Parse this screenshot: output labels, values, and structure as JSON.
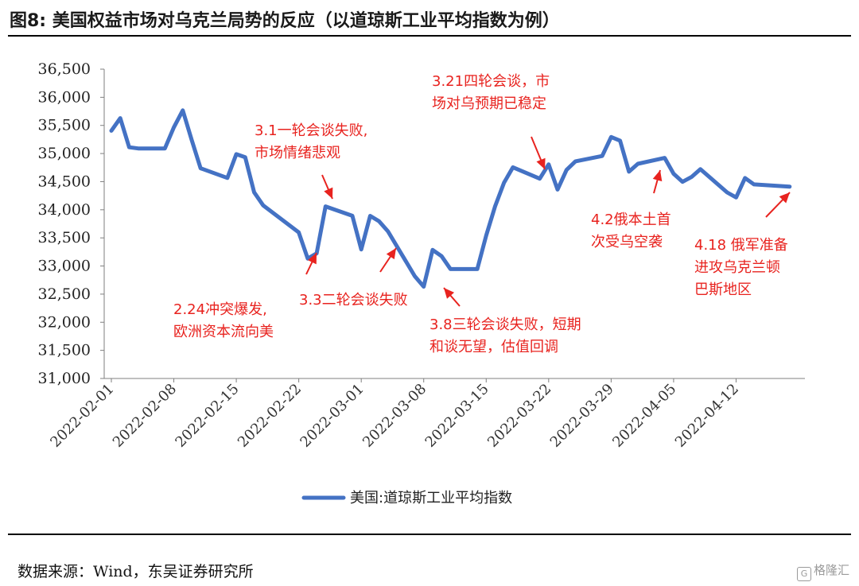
{
  "figure": {
    "title": "图8:  美国权益市场对乌克兰局势的反应（以道琼斯工业平均指数为例）",
    "source": "数据来源：Wind，东吴证券研究所",
    "watermark": "格隆汇"
  },
  "chart_data": {
    "type": "line",
    "title": "",
    "xlabel": "",
    "ylabel": "",
    "ylim": [
      31000,
      36500
    ],
    "yticks": [
      31000,
      31500,
      32000,
      32500,
      33000,
      33500,
      34000,
      34500,
      35000,
      35500,
      36000,
      36500
    ],
    "ytick_labels": [
      "31,000",
      "31,500",
      "32,000",
      "32,500",
      "33,000",
      "33,500",
      "34,000",
      "34,500",
      "35,000",
      "35,500",
      "36,000",
      "36,500"
    ],
    "xlim": [
      "2022-02-01",
      "2022-04-19"
    ],
    "xtick_labels": [
      "2022-02-01",
      "2022-02-08",
      "2022-02-15",
      "2022-02-22",
      "2022-03-01",
      "2022-03-08",
      "2022-03-15",
      "2022-03-22",
      "2022-03-29",
      "2022-04-05",
      "2022-04-12"
    ],
    "grid": false,
    "legend_position": "bottom-center",
    "series": [
      {
        "name": "美国:道琼斯工业平均指数",
        "color": "#4472c4",
        "points": [
          [
            "2022-02-01",
            35405
          ],
          [
            "2022-02-02",
            35629
          ],
          [
            "2022-02-03",
            35112
          ],
          [
            "2022-02-04",
            35090
          ],
          [
            "2022-02-07",
            35091
          ],
          [
            "2022-02-08",
            35463
          ],
          [
            "2022-02-09",
            35768
          ],
          [
            "2022-02-10",
            35241
          ],
          [
            "2022-02-11",
            34738
          ],
          [
            "2022-02-14",
            34566
          ],
          [
            "2022-02-15",
            34989
          ],
          [
            "2022-02-16",
            34935
          ],
          [
            "2022-02-17",
            34312
          ],
          [
            "2022-02-18",
            34079
          ],
          [
            "2022-02-22",
            33597
          ],
          [
            "2022-02-23",
            33132
          ],
          [
            "2022-02-24",
            33224
          ],
          [
            "2022-02-25",
            34059
          ],
          [
            "2022-02-28",
            33893
          ],
          [
            "2022-03-01",
            33295
          ],
          [
            "2022-03-02",
            33891
          ],
          [
            "2022-03-03",
            33795
          ],
          [
            "2022-03-04",
            33615
          ],
          [
            "2022-03-07",
            32818
          ],
          [
            "2022-03-08",
            32633
          ],
          [
            "2022-03-09",
            33286
          ],
          [
            "2022-03-10",
            33174
          ],
          [
            "2022-03-11",
            32945
          ],
          [
            "2022-03-14",
            32945
          ],
          [
            "2022-03-15",
            33544
          ],
          [
            "2022-03-16",
            34063
          ],
          [
            "2022-03-17",
            34481
          ],
          [
            "2022-03-18",
            34755
          ],
          [
            "2022-03-21",
            34553
          ],
          [
            "2022-03-22",
            34808
          ],
          [
            "2022-03-23",
            34359
          ],
          [
            "2022-03-24",
            34708
          ],
          [
            "2022-03-25",
            34862
          ],
          [
            "2022-03-28",
            34956
          ],
          [
            "2022-03-29",
            35294
          ],
          [
            "2022-03-30",
            35229
          ],
          [
            "2022-03-31",
            34678
          ],
          [
            "2022-04-01",
            34818
          ],
          [
            "2022-04-04",
            34922
          ],
          [
            "2022-04-05",
            34641
          ],
          [
            "2022-04-06",
            34497
          ],
          [
            "2022-04-07",
            34583
          ],
          [
            "2022-04-08",
            34722
          ],
          [
            "2022-04-11",
            34308
          ],
          [
            "2022-04-12",
            34220
          ],
          [
            "2022-04-13",
            34565
          ],
          [
            "2022-04-14",
            34451
          ],
          [
            "2022-04-18",
            34412
          ]
        ]
      }
    ],
    "annotations": [
      {
        "lines": [
          "2.24冲突爆发,",
          "欧洲资本流向美"
        ],
        "date": "2022-02-24"
      },
      {
        "lines": [
          "3.1一轮会谈失败,",
          "市场情绪悲观"
        ],
        "date": "2022-02-28"
      },
      {
        "lines": [
          "3.3二轮会谈失败"
        ],
        "date": "2022-03-03"
      },
      {
        "lines": [
          "3.8三轮会谈失败，短期",
          "和谈无望，估值回调"
        ],
        "date": "2022-03-09"
      },
      {
        "lines": [
          "3.21四轮会谈，市",
          "场对乌预期已稳定"
        ],
        "date": "2022-03-21"
      },
      {
        "lines": [
          "4.2俄本土首",
          "次受乌空袭"
        ],
        "date": "2022-04-02"
      },
      {
        "lines": [
          "4.18 俄军准备",
          "进攻乌克兰顿",
          "巴斯地区"
        ],
        "date": "2022-04-18"
      }
    ]
  }
}
